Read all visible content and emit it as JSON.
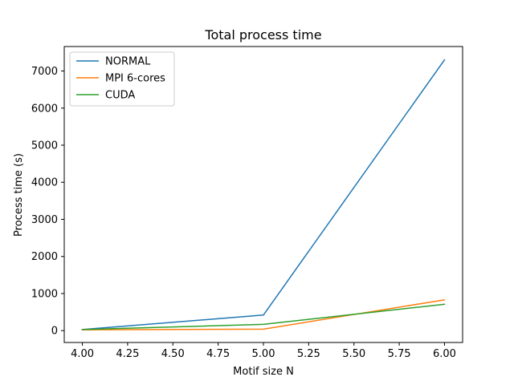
{
  "chart_data": {
    "type": "line",
    "title": "Total process time",
    "xlabel": "Motif size N",
    "ylabel": "Process time (s)",
    "xlim": [
      3.9,
      6.1
    ],
    "ylim": [
      -320,
      7660
    ],
    "xticks": [
      4.0,
      4.25,
      4.5,
      4.75,
      5.0,
      5.25,
      5.5,
      5.75,
      6.0
    ],
    "xtick_labels": [
      "4.00",
      "4.25",
      "4.50",
      "4.75",
      "5.00",
      "5.25",
      "5.50",
      "5.75",
      "6.00"
    ],
    "yticks": [
      0,
      1000,
      2000,
      3000,
      4000,
      5000,
      6000,
      7000
    ],
    "ytick_labels": [
      "0",
      "1000",
      "2000",
      "3000",
      "4000",
      "5000",
      "6000",
      "7000"
    ],
    "grid": false,
    "legend_position": "top-left",
    "x": [
      4,
      5,
      6
    ],
    "series": [
      {
        "name": "NORMAL",
        "color": "#1f77b4",
        "values": [
          30,
          420,
          7300
        ]
      },
      {
        "name": "MPI 6-cores",
        "color": "#ff7f0e",
        "values": [
          20,
          40,
          830
        ]
      },
      {
        "name": "CUDA",
        "color": "#2ca02c",
        "values": [
          30,
          170,
          710
        ]
      }
    ]
  }
}
